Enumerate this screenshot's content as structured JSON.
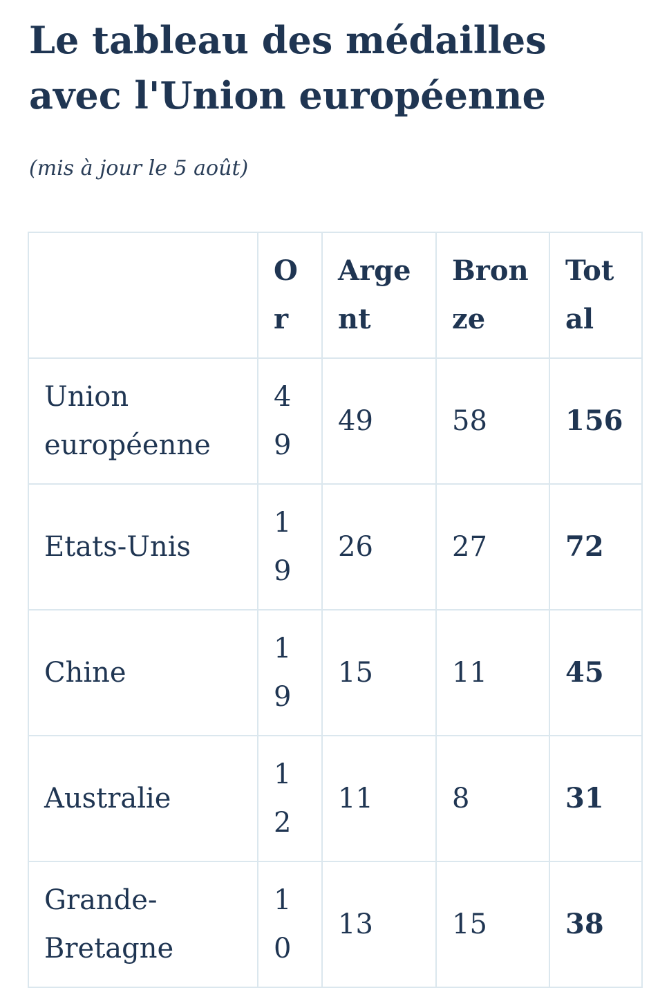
{
  "title": "Le tableau des médailles avec l'Union européenne",
  "subtitle": "(mis à jour le 5 août)",
  "table": {
    "header": [
      "Or",
      "Argent",
      "Bronze",
      "Total"
    ],
    "rows": [
      [
        "Union européenne",
        49,
        49,
        58,
        156
      ],
      [
        "Etats-Unis",
        19,
        26,
        27,
        72
      ],
      [
        "Chine",
        19,
        15,
        11,
        45
      ],
      [
        "Australie",
        12,
        11,
        8,
        31
      ],
      [
        "Grande-Bretagne",
        10,
        13,
        15,
        38
      ]
    ]
  }
}
